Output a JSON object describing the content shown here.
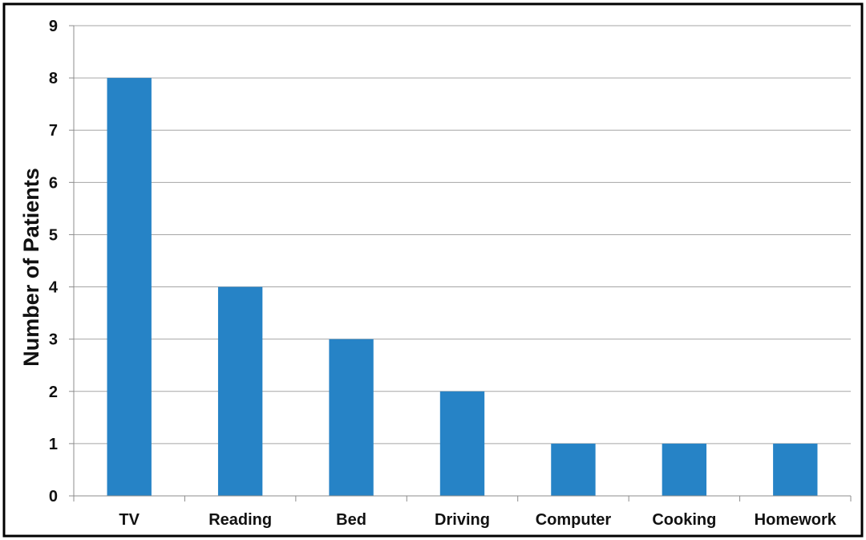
{
  "chart_data": {
    "type": "bar",
    "title": "",
    "xlabel": "",
    "ylabel": "Number of Patients",
    "categories": [
      "TV",
      "Reading",
      "Bed",
      "Driving",
      "Computer",
      "Cooking",
      "Homework"
    ],
    "values": [
      8,
      4,
      3,
      2,
      1,
      1,
      1
    ],
    "ylim": [
      0,
      9
    ],
    "yticks": [
      0,
      1,
      2,
      3,
      4,
      5,
      6,
      7,
      8,
      9
    ],
    "grid": true,
    "legend": "none",
    "bar_color": "#2683c6",
    "border_color": "#000000"
  }
}
